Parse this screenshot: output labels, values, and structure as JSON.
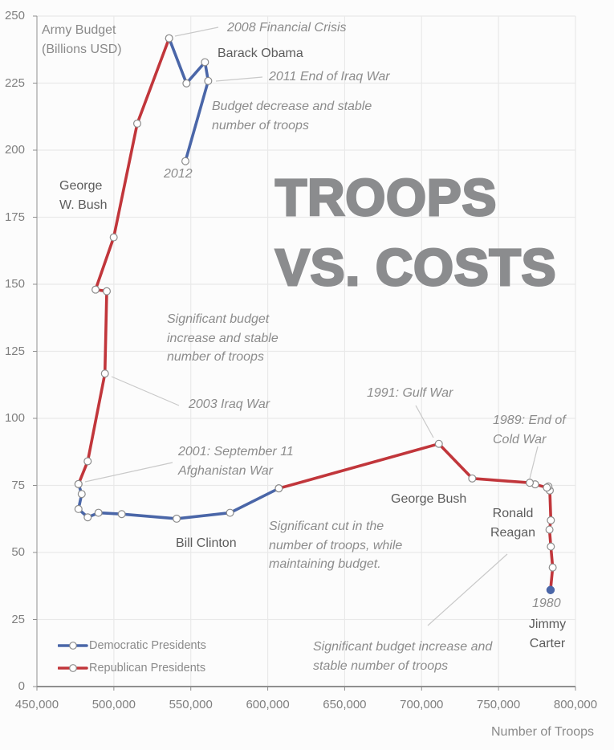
{
  "chart_data": {
    "type": "line",
    "title": "TROOPS VS. COSTS",
    "title_lines": [
      "TROOPS",
      "VS. COSTS"
    ],
    "xlabel": "Number of Troops",
    "ylabel_lines": [
      "Army Budget",
      "(Billions USD)"
    ],
    "xlim": [
      450000,
      800000
    ],
    "ylim": [
      0,
      250
    ],
    "xticks": [
      450000,
      500000,
      550000,
      600000,
      650000,
      700000,
      750000,
      800000
    ],
    "xtick_labels": [
      "450,000",
      "500,000",
      "550,000",
      "600,000",
      "650,000",
      "700,000",
      "750,000",
      "800,000"
    ],
    "yticks": [
      0,
      25,
      50,
      75,
      100,
      125,
      150,
      175,
      200,
      225,
      250
    ],
    "ytick_labels": [
      "0",
      "25",
      "50",
      "75",
      "100",
      "125",
      "150",
      "175",
      "200",
      "225",
      "250"
    ],
    "grid": true,
    "legend": {
      "position": "bottom-left",
      "entries": [
        {
          "label": "Democratic Presidents",
          "color": "#4a66a8"
        },
        {
          "label": "Republican Presidents",
          "color": "#c1363b"
        }
      ]
    },
    "series": [
      {
        "name": "Democratic Presidents",
        "color": "#4a66a8",
        "segments": [
          {
            "filled_marker": true,
            "points": [
              [
                783800,
                36.0
              ]
            ]
          },
          {
            "points": [
              [
                607200,
                73.9
              ],
              [
                575500,
                64.8
              ],
              [
                540800,
                62.6
              ],
              [
                505100,
                64.3
              ],
              [
                490000,
                64.8
              ],
              [
                483000,
                63.1
              ],
              [
                477000,
                66.2
              ],
              [
                479100,
                71.8
              ],
              [
                477000,
                75.5
              ]
            ]
          },
          {
            "points": [
              [
                535900,
                241.7
              ],
              [
                547200,
                224.9
              ],
              [
                559200,
                232.8
              ],
              [
                561300,
                225.8
              ],
              [
                546500,
                195.9
              ]
            ]
          }
        ]
      },
      {
        "name": "Republican Presidents",
        "color": "#c1363b",
        "segments": [
          {
            "points": [
              [
                783800,
                36.0
              ],
              [
                785200,
                44.4
              ],
              [
                784000,
                52.2
              ],
              [
                783100,
                58.5
              ],
              [
                784000,
                62.0
              ],
              [
                783300,
                73.1
              ],
              [
                782400,
                74.6
              ],
              [
                781400,
                74.2
              ],
              [
                773800,
                75.4
              ],
              [
                770300,
                76.0
              ],
              [
                732900,
                77.6
              ],
              [
                711200,
                90.5
              ],
              [
                607200,
                73.9
              ]
            ]
          },
          {
            "points": [
              [
                477000,
                75.5
              ],
              [
                483000,
                84.0
              ],
              [
                494200,
                116.7
              ],
              [
                495400,
                147.4
              ],
              [
                488100,
                148.0
              ],
              [
                499900,
                167.5
              ],
              [
                515200,
                209.9
              ],
              [
                535900,
                241.7
              ]
            ]
          }
        ]
      }
    ],
    "president_labels": {
      "obama": "Barack Obama",
      "gw_bush": [
        "George",
        "W. Bush"
      ],
      "clinton": "Bill Clinton",
      "bush": "George Bush",
      "reagan": [
        "Ronald",
        "Reagan"
      ],
      "carter": [
        "Jimmy",
        "Carter"
      ]
    },
    "annotations": {
      "financial_crisis": "2008 Financial Crisis",
      "end_iraq_war": "2011 End of Iraq War",
      "budget_decrease": [
        "Budget decrease and stable",
        "number of troops"
      ],
      "year_2012": "2012",
      "budget_increase_middle": [
        "Significant budget",
        "increase and stable",
        "number of troops"
      ],
      "iraq_war": "2003 Iraq War",
      "sept11": [
        "2001: September 11",
        "Afghanistan War"
      ],
      "gulf_war": "1991: Gulf War",
      "cold_war": [
        "1989: End of",
        "Cold War"
      ],
      "troop_cut": [
        "Significant cut in the",
        "number of troops, while",
        "maintaining budget."
      ],
      "year_1980": "1980",
      "budget_increase_bottom": [
        "Significant budget increase and",
        "stable number of troops"
      ]
    }
  }
}
